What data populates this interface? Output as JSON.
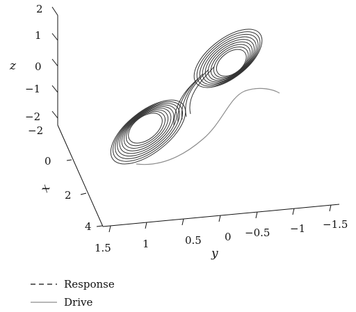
{
  "chart_data": {
    "type": "line",
    "projection": "3d",
    "title": "",
    "axes": {
      "x": {
        "label": "x",
        "ticks": [
          "−2",
          "0",
          "2",
          "4"
        ],
        "range": [
          -2,
          4
        ]
      },
      "y": {
        "label": "y",
        "ticks": [
          "1.5",
          "1",
          "0.5",
          "0",
          "−0.5",
          "−1",
          "−1.5"
        ],
        "range": [
          1.5,
          -1.5
        ]
      },
      "z": {
        "label": "z",
        "ticks": [
          "2",
          "1",
          "0",
          "−1",
          "−2"
        ],
        "range": [
          -2,
          2
        ]
      }
    },
    "legend": {
      "placement": "bottom-left",
      "entries": [
        {
          "label": "Response",
          "style": "dashed"
        },
        {
          "label": "Drive",
          "style": "solid"
        }
      ]
    },
    "series": [
      {
        "name": "Response",
        "kind": "double-scroll attractor",
        "color": "#333333"
      },
      {
        "name": "Drive",
        "kind": "transient curve",
        "color": "#8c8c8c"
      }
    ],
    "grid": false
  }
}
